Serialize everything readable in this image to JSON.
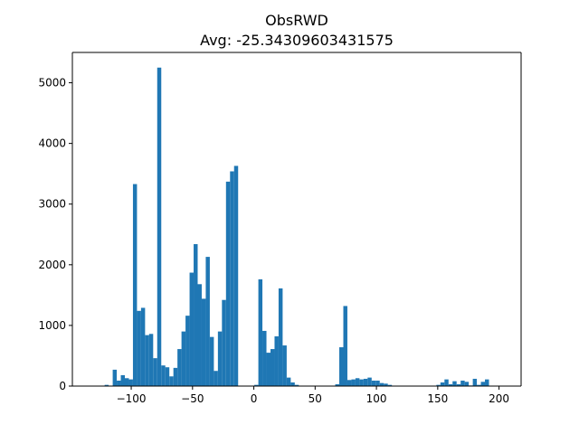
{
  "chart_data": {
    "type": "bar",
    "title": "ObsRWD",
    "subtitle": "Avg: -25.34309603431575",
    "xlabel": "",
    "ylabel": "",
    "xlim": [
      -148,
      218
    ],
    "ylim": [
      0,
      5500
    ],
    "x_ticks": [
      -100,
      -50,
      0,
      50,
      100,
      150,
      200
    ],
    "y_ticks": [
      0,
      1000,
      2000,
      3000,
      4000,
      5000
    ],
    "grid": false,
    "bar_color": "#1f77b4",
    "bin_width": 3.3,
    "series": [
      {
        "bin_start": [
          -125,
          -121.7,
          -118.4,
          -115.1,
          -111.8,
          -108.5,
          -105.2,
          -101.9,
          -98.6,
          -95.3,
          -92,
          -88.7,
          -85.4,
          -82.1,
          -78.8,
          -75.5,
          -72.2,
          -68.9,
          -65.6,
          -62.3,
          -59,
          -55.7,
          -52.4,
          -49.1,
          -45.8,
          -42.5,
          -39.2,
          -35.9,
          -32.6,
          -29.3,
          -26,
          -22.7,
          -19.4,
          -16.1,
          -12.8,
          -9.5,
          -6.2,
          -2.9,
          0.4,
          3.7,
          7,
          10.3,
          13.6,
          16.9,
          20.2,
          23.5,
          26.8,
          30.1,
          33.4,
          36.7,
          40,
          43.3,
          46.6,
          49.9,
          53.2,
          56.5,
          59.8,
          63.1,
          66.4,
          69.7,
          73,
          76.3,
          79.6,
          82.9,
          86.2,
          89.5,
          92.8,
          96.1,
          99.4,
          102.7,
          106,
          109.3,
          112.6,
          115.9,
          119.2,
          122.5,
          125.8,
          129.1,
          132.4,
          135.7,
          139,
          142.3,
          145.6,
          148.9,
          152.2,
          155.5,
          158.8,
          162.1,
          165.4,
          168.7,
          172,
          175.3,
          178.6,
          181.9,
          185.2,
          188.5,
          191.8,
          195.1,
          198.4
        ],
        "values": [
          0,
          20,
          0,
          270,
          90,
          180,
          130,
          110,
          3330,
          1240,
          1290,
          840,
          860,
          460,
          5250,
          340,
          310,
          160,
          300,
          610,
          900,
          1160,
          1870,
          2340,
          1680,
          1440,
          2130,
          810,
          250,
          900,
          1420,
          3370,
          3540,
          3630,
          0,
          0,
          0,
          0,
          20,
          1760,
          910,
          550,
          610,
          820,
          1610,
          670,
          140,
          60,
          20,
          0,
          0,
          0,
          0,
          0,
          0,
          0,
          0,
          0,
          30,
          640,
          1320,
          100,
          110,
          130,
          110,
          120,
          140,
          90,
          90,
          50,
          40,
          20,
          0,
          0,
          0,
          0,
          0,
          0,
          0,
          0,
          0,
          0,
          0,
          20,
          60,
          110,
          30,
          80,
          30,
          90,
          70,
          10,
          120,
          20,
          70,
          110,
          0,
          0,
          0
        ]
      }
    ]
  }
}
